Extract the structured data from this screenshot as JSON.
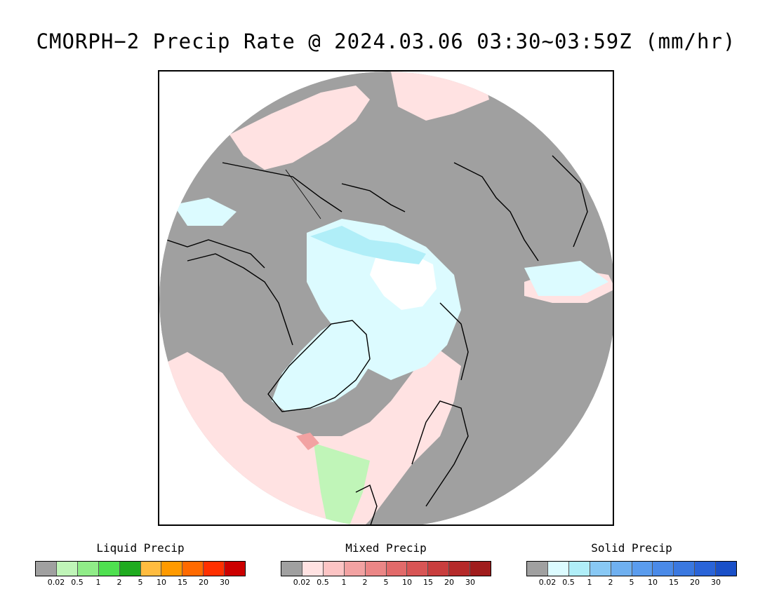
{
  "title": "CMORPH−2 Precip Rate @ 2024.03.06 03:30~03:59Z (mm/hr)",
  "legends": [
    {
      "name": "Liquid Precip",
      "colors": [
        "#a0a0a0",
        "#c0f5b8",
        "#90ec88",
        "#4fe050",
        "#1fab1f",
        "#ffbc40",
        "#ff9a00",
        "#ff6a00",
        "#ff3000",
        "#cc0000"
      ],
      "ticks": [
        "0.02",
        "0.5",
        "1",
        "2",
        "5",
        "10",
        "15",
        "20",
        "30"
      ]
    },
    {
      "name": "Mixed Precip",
      "colors": [
        "#a0a0a0",
        "#ffe2e2",
        "#fcc4c4",
        "#f2a2a2",
        "#eb8686",
        "#e26a6a",
        "#d85555",
        "#c93e3e",
        "#b52a2a",
        "#a01c1c"
      ],
      "ticks": [
        "0.02",
        "0.5",
        "1",
        "2",
        "5",
        "10",
        "15",
        "20",
        "30"
      ]
    },
    {
      "name": "Solid Precip",
      "colors": [
        "#a0a0a0",
        "#dcfbff",
        "#b0eef8",
        "#88c8f4",
        "#6fb0f0",
        "#5a9cee",
        "#4a8ae8",
        "#3a78e0",
        "#2a64d8",
        "#1a50c8"
      ],
      "ticks": [
        "0.02",
        "0.5",
        "1",
        "2",
        "5",
        "10",
        "15",
        "20",
        "30"
      ]
    }
  ],
  "map_colors": {
    "no_precip": "#a0a0a0",
    "mixed_light": "#ffe2e2",
    "mixed_mid": "#f2a2a2",
    "solid_light": "#dcfbff",
    "solid_mid": "#b0eef8",
    "liquid_light": "#c0f5b8",
    "snow_white": "#ffffff",
    "coastline": "#000000"
  }
}
